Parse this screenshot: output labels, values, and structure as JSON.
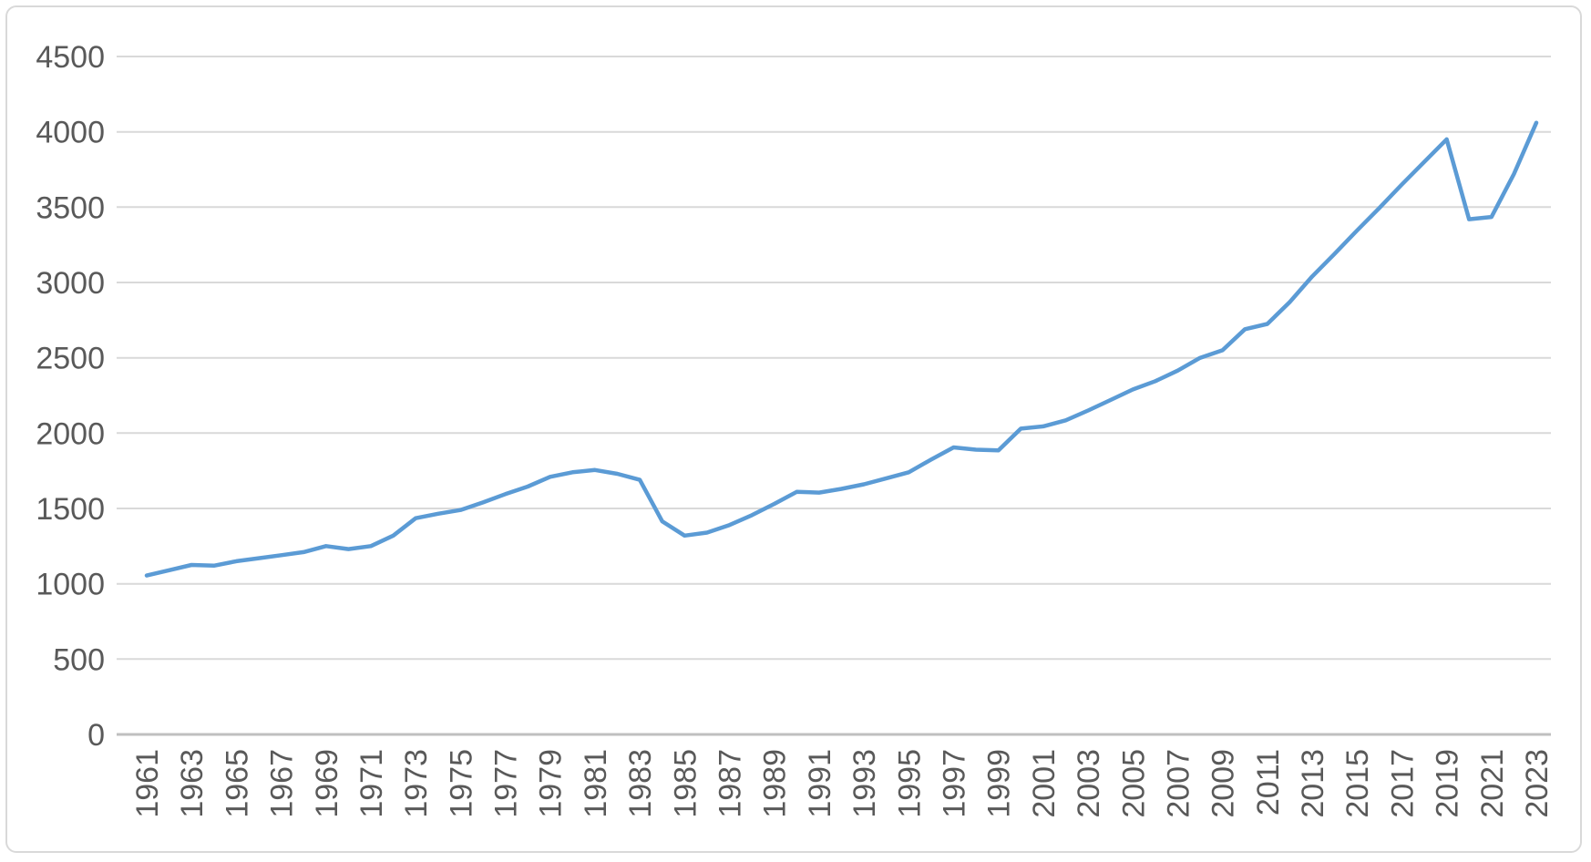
{
  "chart_data": {
    "type": "line",
    "title": "",
    "xlabel": "",
    "ylabel": "",
    "grid": true,
    "legend": false,
    "ylim": [
      0,
      4500
    ],
    "y_ticks": [
      0,
      500,
      1000,
      1500,
      2000,
      2500,
      3000,
      3500,
      4000,
      4500
    ],
    "x_tick_labels": [
      "1961",
      "1963",
      "1965",
      "1967",
      "1969",
      "1971",
      "1973",
      "1975",
      "1977",
      "1979",
      "1981",
      "1983",
      "1985",
      "1987",
      "1989",
      "1991",
      "1993",
      "1995",
      "1997",
      "1999",
      "2001",
      "2003",
      "2005",
      "2007",
      "2009",
      "2011",
      "2013",
      "2015",
      "2017",
      "2019",
      "2021",
      "2023"
    ],
    "x": [
      1961,
      1962,
      1963,
      1964,
      1965,
      1966,
      1967,
      1968,
      1969,
      1970,
      1971,
      1972,
      1973,
      1974,
      1975,
      1976,
      1977,
      1978,
      1979,
      1980,
      1981,
      1982,
      1983,
      1984,
      1985,
      1986,
      1987,
      1988,
      1989,
      1990,
      1991,
      1992,
      1993,
      1994,
      1995,
      1996,
      1997,
      1998,
      1999,
      2000,
      2001,
      2002,
      2003,
      2004,
      2005,
      2006,
      2007,
      2008,
      2009,
      2010,
      2011,
      2012,
      2013,
      2014,
      2015,
      2016,
      2017,
      2018,
      2019,
      2020,
      2021,
      2022,
      2023
    ],
    "series": [
      {
        "color": "#5b9bd5",
        "values": [
          1055,
          1090,
          1125,
          1120,
          1150,
          1170,
          1190,
          1210,
          1250,
          1230,
          1250,
          1320,
          1435,
          1465,
          1490,
          1540,
          1595,
          1645,
          1710,
          1740,
          1755,
          1730,
          1690,
          1415,
          1320,
          1340,
          1390,
          1455,
          1530,
          1610,
          1605,
          1630,
          1660,
          1700,
          1740,
          1825,
          1905,
          1890,
          1885,
          2030,
          2045,
          2085,
          2150,
          2220,
          2290,
          2345,
          2415,
          2500,
          2550,
          2690,
          2725,
          2870,
          3040,
          3190,
          3345,
          3495,
          3650,
          3800,
          3950,
          3420,
          3435,
          3720,
          4060
        ]
      }
    ]
  },
  "colors": {
    "line": "#5b9bd5",
    "gridline": "#d9d9d9",
    "axis_line": "#bfbfbf",
    "tick_label": "#595959",
    "frame_border": "#d9d9d9",
    "background": "#ffffff"
  }
}
